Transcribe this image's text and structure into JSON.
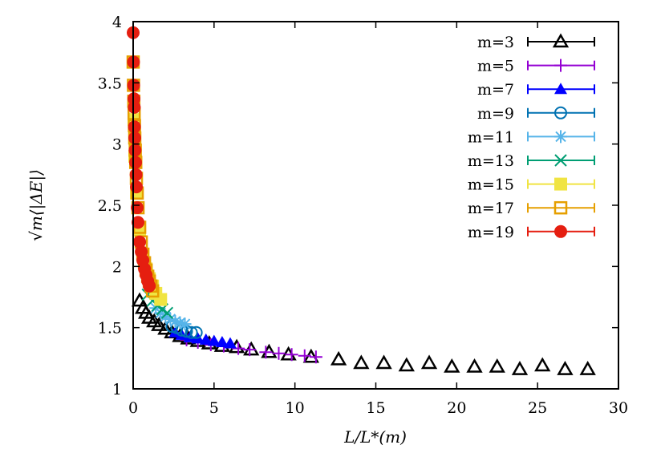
{
  "chart_data": {
    "type": "scatter",
    "title": "",
    "xlabel": "L/L*(m)",
    "ylabel": "√m⟨|ΔE|⟩",
    "xlim": [
      0,
      30
    ],
    "ylim": [
      1,
      4
    ],
    "xticks": [
      "0",
      "5",
      "10",
      "15",
      "20",
      "25",
      "30"
    ],
    "yticks": [
      "1",
      "1.5",
      "2",
      "2.5",
      "3",
      "3.5",
      "4"
    ],
    "grid": false,
    "legend_position": "top-right",
    "series": [
      {
        "name": "m=3",
        "color": "#000000",
        "marker": "triangle-open",
        "x": [
          0.4,
          0.6,
          0.8,
          1.0,
          1.3,
          1.6,
          2.0,
          2.4,
          2.9,
          3.4,
          4.0,
          4.7,
          5.5,
          6.4,
          7.3,
          8.4,
          9.6,
          11.0,
          12.7,
          14.1,
          15.5,
          16.9,
          18.3,
          19.7,
          21.1,
          22.5,
          23.9,
          25.3,
          26.7,
          28.1
        ],
        "y": [
          1.72,
          1.66,
          1.62,
          1.58,
          1.55,
          1.52,
          1.49,
          1.46,
          1.43,
          1.41,
          1.39,
          1.37,
          1.35,
          1.34,
          1.32,
          1.3,
          1.28,
          1.26,
          1.24,
          1.21,
          1.21,
          1.19,
          1.21,
          1.18,
          1.18,
          1.18,
          1.16,
          1.19,
          1.16,
          1.16
        ]
      },
      {
        "name": "m=5",
        "color": "#9400d3",
        "marker": "plus",
        "x": [
          3.3,
          4.0,
          4.8,
          5.6,
          6.5,
          7.2,
          8.2,
          9.0,
          9.8,
          10.6,
          11.3
        ],
        "y": [
          1.4,
          1.38,
          1.36,
          1.35,
          1.33,
          1.32,
          1.3,
          1.29,
          1.28,
          1.27,
          1.26
        ]
      },
      {
        "name": "m=7",
        "color": "#0000ff",
        "marker": "triangle-filled",
        "x": [
          2.6,
          3.0,
          3.5,
          4.0,
          4.5,
          5.0,
          5.5,
          6.0
        ],
        "y": [
          1.46,
          1.44,
          1.42,
          1.41,
          1.4,
          1.39,
          1.38,
          1.37
        ]
      },
      {
        "name": "m=9",
        "color": "#0072b2",
        "marker": "circle-open",
        "x": [
          2.4,
          2.7,
          3.0,
          3.3,
          3.6,
          3.9
        ],
        "y": [
          1.51,
          1.5,
          1.48,
          1.47,
          1.46,
          1.46
        ]
      },
      {
        "name": "m=11",
        "color": "#56b4e9",
        "marker": "star",
        "x": [
          1.4,
          1.7,
          2.0,
          2.3,
          2.6,
          2.9,
          3.2
        ],
        "y": [
          1.66,
          1.62,
          1.59,
          1.57,
          1.55,
          1.54,
          1.53
        ]
      },
      {
        "name": "m=13",
        "color": "#009e73",
        "marker": "cross",
        "x": [
          0.05,
          0.9,
          1.2,
          1.5,
          1.8,
          2.1
        ],
        "y": [
          3.25,
          1.77,
          1.72,
          1.68,
          1.65,
          1.62
        ]
      },
      {
        "name": "m=15",
        "color": "#f0e442",
        "marker": "square-filled",
        "x": [
          0.05,
          0.1,
          0.2,
          0.4,
          0.6,
          0.8,
          1.0,
          1.2,
          1.4,
          1.7
        ],
        "y": [
          3.2,
          2.9,
          2.6,
          2.3,
          2.1,
          1.98,
          1.9,
          1.84,
          1.78,
          1.73
        ]
      },
      {
        "name": "m=17",
        "color": "#e69f00",
        "marker": "square-open",
        "x": [
          0.0,
          0.02,
          0.04,
          0.06,
          0.08,
          0.1,
          0.13,
          0.16,
          0.2,
          0.25,
          0.3,
          0.4,
          0.5,
          0.6,
          0.7,
          0.8,
          0.9,
          1.0,
          1.1,
          1.2
        ],
        "y": [
          3.67,
          3.48,
          3.35,
          3.25,
          3.15,
          3.05,
          2.95,
          2.85,
          2.72,
          2.6,
          2.48,
          2.32,
          2.2,
          2.1,
          2.03,
          1.97,
          1.92,
          1.88,
          1.84,
          1.8
        ]
      },
      {
        "name": "m=19",
        "color": "#e51e10",
        "marker": "circle-filled",
        "x": [
          0.0,
          0.02,
          0.03,
          0.05,
          0.07,
          0.08,
          0.1,
          0.12,
          0.15,
          0.18,
          0.2,
          0.25,
          0.3,
          0.4,
          0.5,
          0.6,
          0.7,
          0.8,
          0.9,
          1.0
        ],
        "y": [
          3.91,
          3.67,
          3.48,
          3.37,
          3.3,
          3.14,
          3.05,
          2.95,
          2.85,
          2.75,
          2.65,
          2.48,
          2.36,
          2.2,
          2.12,
          2.05,
          1.98,
          1.93,
          1.88,
          1.84
        ]
      }
    ]
  }
}
